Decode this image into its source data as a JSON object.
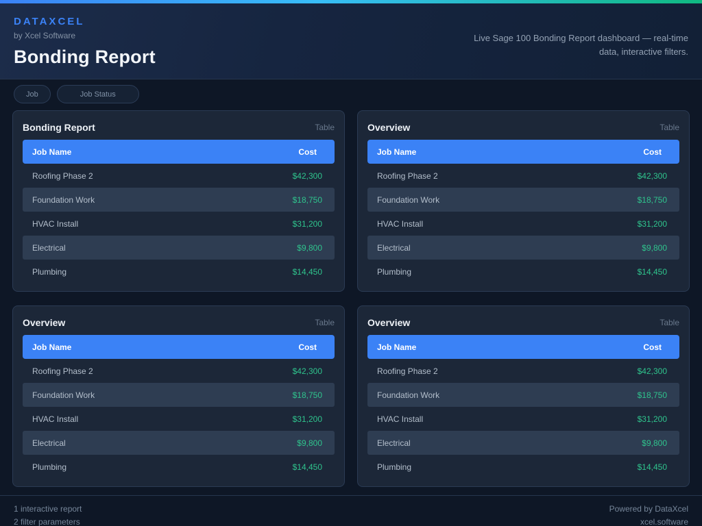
{
  "colors": {
    "page_bg": "#0e1726",
    "accent_blue": "#3b82f6",
    "accent_cyan": "#38bdf8",
    "accent_green": "#10b981",
    "cost_green": "#2fc48d",
    "card_bg": "#1c2738",
    "card_border": "#2b3b54",
    "row_stripe": "#2e3d52"
  },
  "header": {
    "brand": "DATAXCEL",
    "byline": "by Xcel Software",
    "title": "Bonding Report",
    "subtitle": "Live Sage 100 Bonding Report dashboard — real-time data, interactive filters."
  },
  "filters": {
    "job": "Job",
    "job_status": "Job Status"
  },
  "cards": [
    {
      "title": "Bonding Report",
      "type_label": "Table",
      "columns": {
        "name": "Job Name",
        "cost": "Cost"
      },
      "rows": [
        {
          "name": "Roofing Phase 2",
          "cost": "$42,300"
        },
        {
          "name": "Foundation Work",
          "cost": "$18,750"
        },
        {
          "name": "HVAC Install",
          "cost": "$31,200"
        },
        {
          "name": "Electrical",
          "cost": "$9,800"
        },
        {
          "name": "Plumbing",
          "cost": "$14,450"
        }
      ]
    },
    {
      "title": "Overview",
      "type_label": "Table",
      "columns": {
        "name": "Job Name",
        "cost": "Cost"
      },
      "rows": [
        {
          "name": "Roofing Phase 2",
          "cost": "$42,300"
        },
        {
          "name": "Foundation Work",
          "cost": "$18,750"
        },
        {
          "name": "HVAC Install",
          "cost": "$31,200"
        },
        {
          "name": "Electrical",
          "cost": "$9,800"
        },
        {
          "name": "Plumbing",
          "cost": "$14,450"
        }
      ]
    },
    {
      "title": "Overview",
      "type_label": "Table",
      "columns": {
        "name": "Job Name",
        "cost": "Cost"
      },
      "rows": [
        {
          "name": "Roofing Phase 2",
          "cost": "$42,300"
        },
        {
          "name": "Foundation Work",
          "cost": "$18,750"
        },
        {
          "name": "HVAC Install",
          "cost": "$31,200"
        },
        {
          "name": "Electrical",
          "cost": "$9,800"
        },
        {
          "name": "Plumbing",
          "cost": "$14,450"
        }
      ]
    },
    {
      "title": "Overview",
      "type_label": "Table",
      "columns": {
        "name": "Job Name",
        "cost": "Cost"
      },
      "rows": [
        {
          "name": "Roofing Phase 2",
          "cost": "$42,300"
        },
        {
          "name": "Foundation Work",
          "cost": "$18,750"
        },
        {
          "name": "HVAC Install",
          "cost": "$31,200"
        },
        {
          "name": "Electrical",
          "cost": "$9,800"
        },
        {
          "name": "Plumbing",
          "cost": "$14,450"
        }
      ]
    }
  ],
  "footer": {
    "left_line1": "1 interactive report",
    "left_line2": "2 filter parameters",
    "right_line1": "Powered by DataXcel",
    "right_line2": "xcel.software"
  }
}
